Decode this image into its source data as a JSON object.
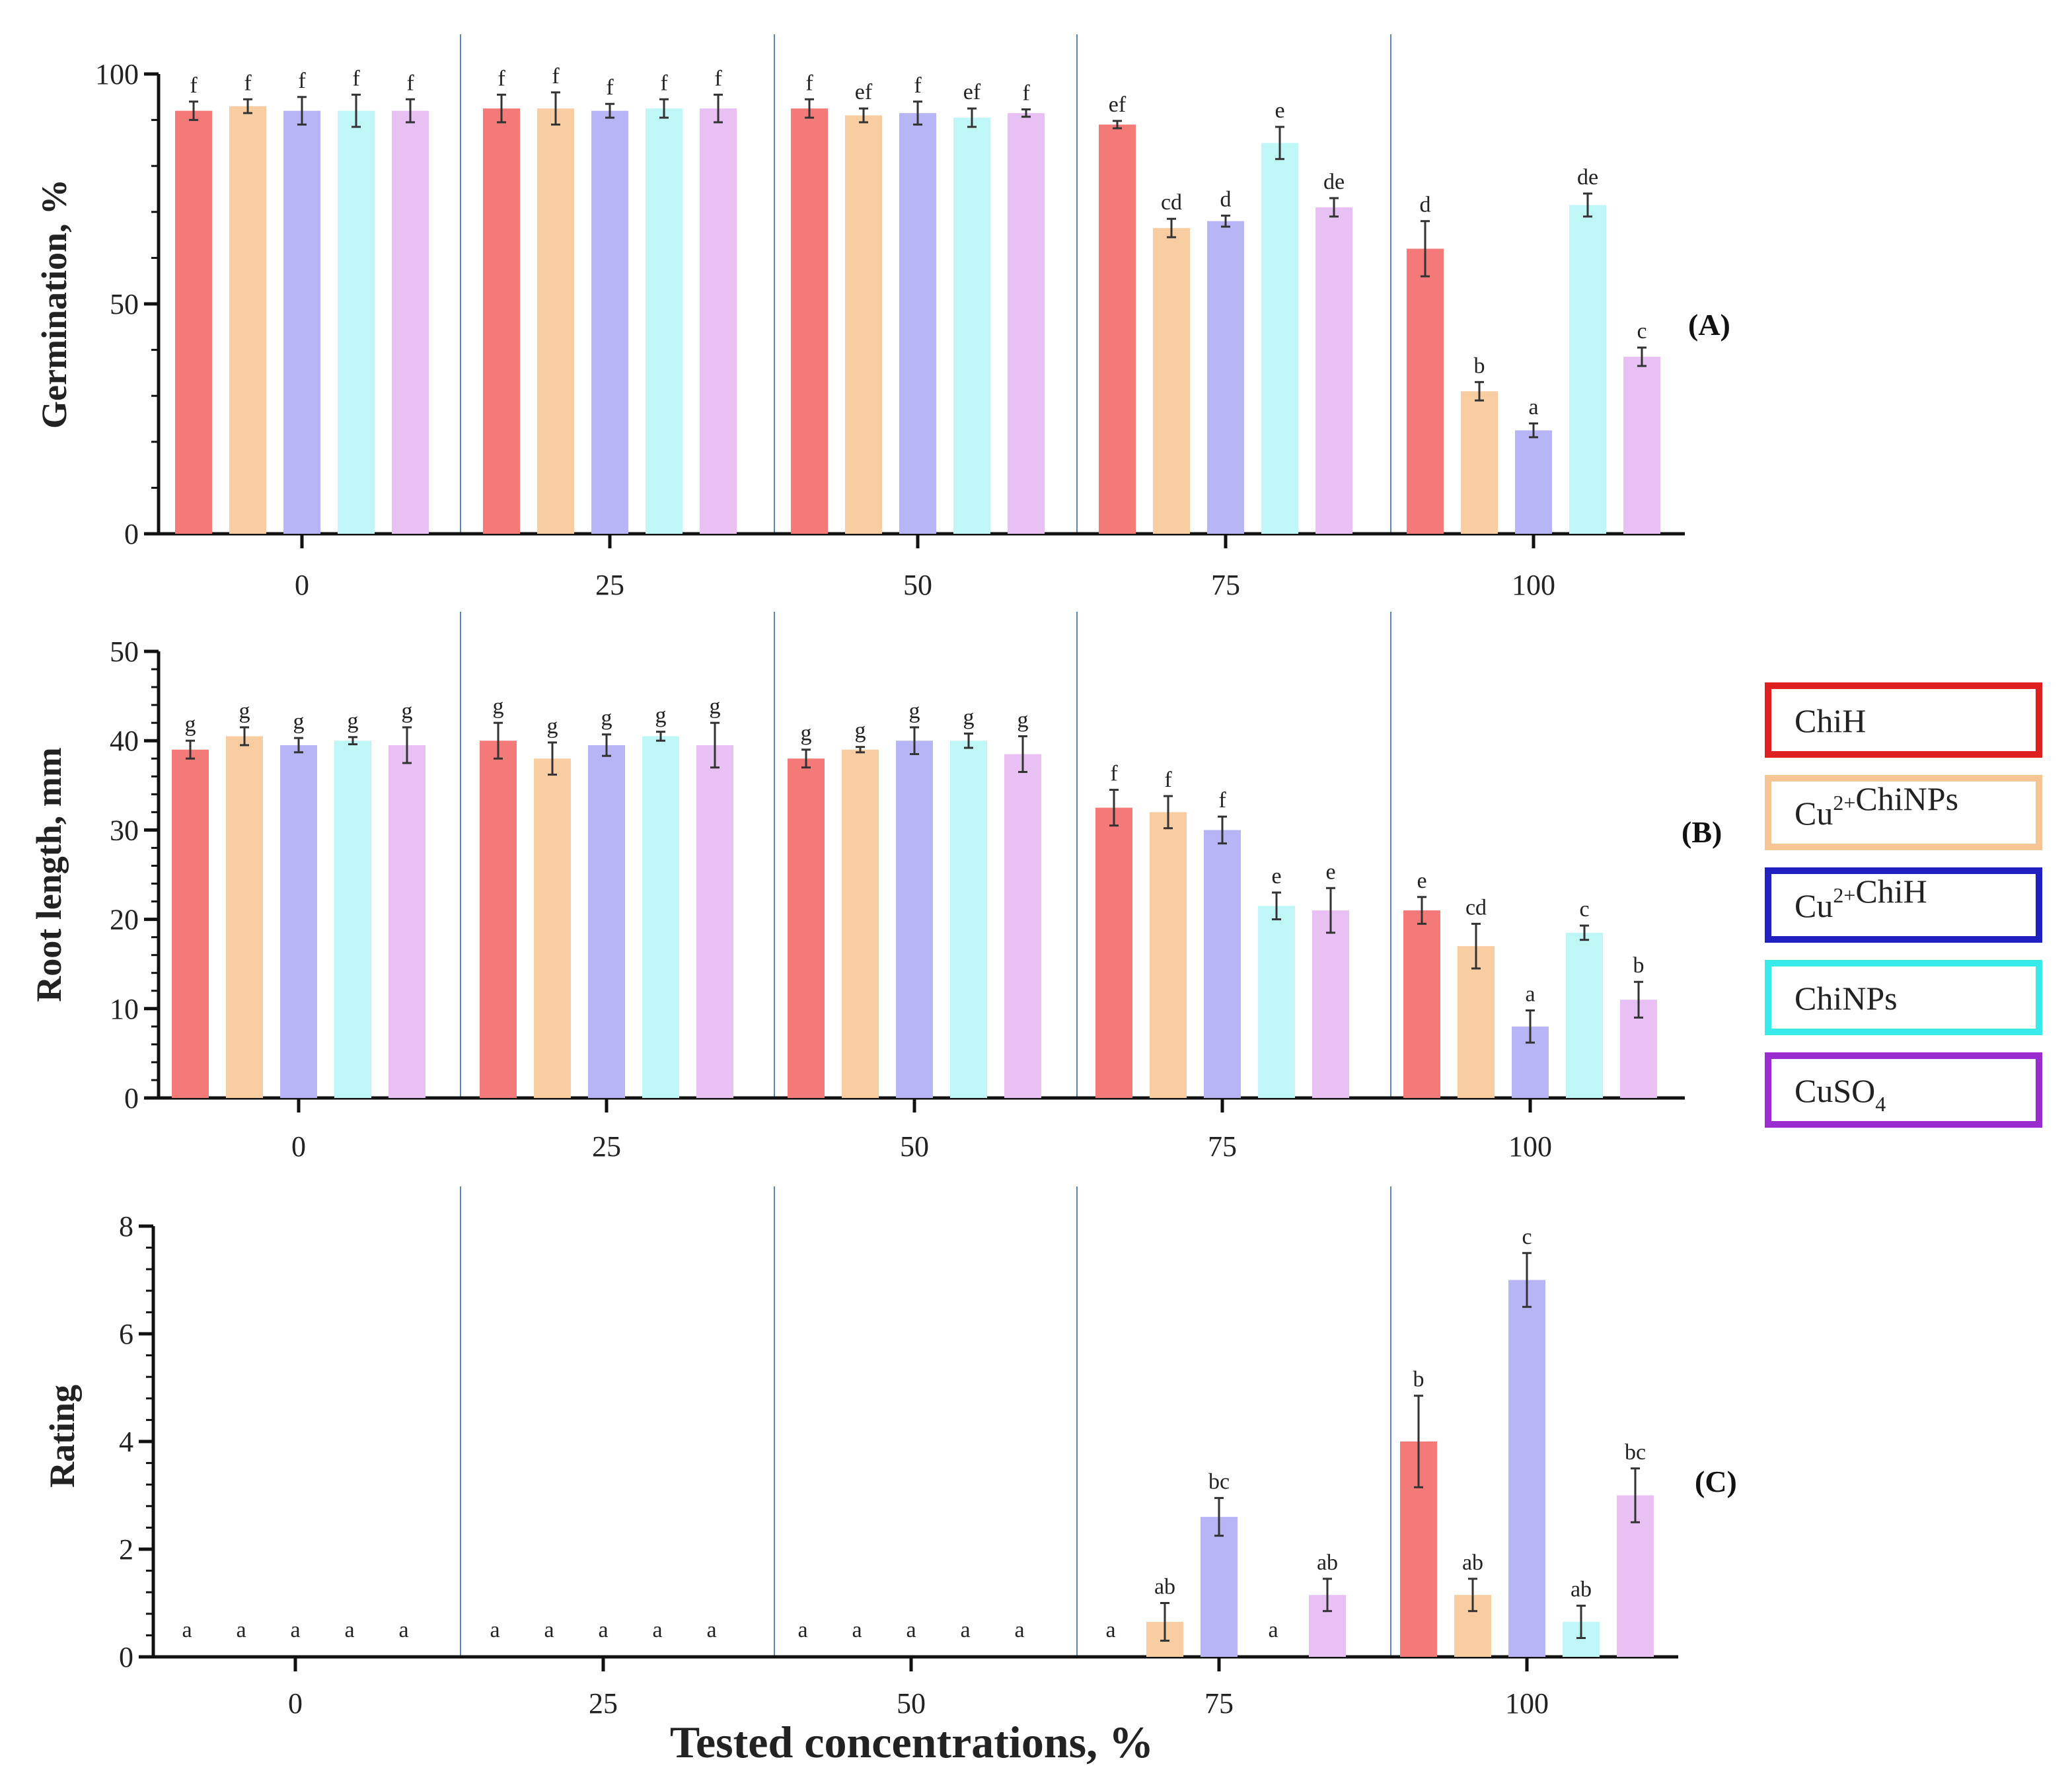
{
  "legend": [
    {
      "key": "chih",
      "parts": [
        {
          "t": "ChiH"
        }
      ],
      "color": "#f47a7a",
      "border": "#e02020"
    },
    {
      "key": "cuchinps",
      "parts": [
        {
          "t": "Cu"
        },
        {
          "t": "2+",
          "sup": true
        },
        {
          "t": "ChiNPs"
        }
      ],
      "color": "#f9cda2",
      "border": "#f6c593"
    },
    {
      "key": "cuchih",
      "parts": [
        {
          "t": "Cu"
        },
        {
          "t": "2+",
          "sup": true
        },
        {
          "t": "ChiH"
        }
      ],
      "color": "#b7b5f5",
      "border": "#1f1fc2"
    },
    {
      "key": "chinps",
      "parts": [
        {
          "t": "ChiNPs"
        }
      ],
      "color": "#bff7f7",
      "border": "#38eaea"
    },
    {
      "key": "cuso4",
      "parts": [
        {
          "t": "CuSO"
        },
        {
          "t": "4",
          "sub": true
        }
      ],
      "color": "#e8c0f3",
      "border": "#9a2ccf"
    }
  ],
  "xlabel": "Tested concentrations, %",
  "chart_data": [
    {
      "type": "bar",
      "panel_label": "(A)",
      "ylabel": "Germination, %",
      "ylim": [
        0,
        100
      ],
      "yticks": [
        "0",
        "50",
        "100"
      ],
      "categories": [
        "0",
        "25",
        "50",
        "75",
        "100"
      ],
      "series": [
        {
          "name": "ChiH",
          "values": [
            92,
            92.5,
            92.5,
            89,
            62
          ],
          "errors": [
            2,
            3,
            2,
            0.8,
            6
          ],
          "letters": [
            "f",
            "f",
            "f",
            "ef",
            "d"
          ]
        },
        {
          "name": "Cu2+ChiNPs",
          "values": [
            93,
            92.5,
            91,
            66.5,
            31
          ],
          "errors": [
            1.5,
            3.5,
            1.5,
            2,
            2
          ],
          "letters": [
            "f",
            "f",
            "ef",
            "cd",
            "b"
          ]
        },
        {
          "name": "Cu2+ChiH",
          "values": [
            92,
            92,
            91.5,
            68,
            22.5
          ],
          "errors": [
            3,
            1.5,
            2.5,
            1.2,
            1.5
          ],
          "letters": [
            "f",
            "f",
            "f",
            "d",
            "a"
          ]
        },
        {
          "name": "ChiNPs",
          "values": [
            92,
            92.5,
            90.5,
            85,
            71.5
          ],
          "errors": [
            3.5,
            2,
            2,
            3.5,
            2.5
          ],
          "letters": [
            "f",
            "f",
            "ef",
            "e",
            "de"
          ]
        },
        {
          "name": "CuSO4",
          "values": [
            92,
            92.5,
            91.5,
            71,
            38.5
          ],
          "errors": [
            2.5,
            3,
            0.8,
            2,
            2
          ],
          "letters": [
            "f",
            "f",
            "f",
            "de",
            "c"
          ]
        }
      ]
    },
    {
      "type": "bar",
      "panel_label": "(B)",
      "ylabel": "Root length, mm",
      "ylim": [
        0,
        50
      ],
      "yticks": [
        "0",
        "10",
        "20",
        "30",
        "40",
        "50"
      ],
      "categories": [
        "0",
        "25",
        "50",
        "75",
        "100"
      ],
      "series": [
        {
          "name": "ChiH",
          "values": [
            39,
            40,
            38,
            32.5,
            21
          ],
          "errors": [
            1,
            2,
            1,
            2,
            1.5
          ],
          "letters": [
            "g",
            "g",
            "g",
            "f",
            "e"
          ]
        },
        {
          "name": "Cu2+ChiNPs",
          "values": [
            40.5,
            38,
            39,
            32,
            17
          ],
          "errors": [
            1,
            1.8,
            0.3,
            1.8,
            2.5
          ],
          "letters": [
            "g",
            "g",
            "g",
            "f",
            "cd"
          ]
        },
        {
          "name": "Cu2+ChiH",
          "values": [
            39.5,
            39.5,
            40,
            30,
            8
          ],
          "errors": [
            0.8,
            1.2,
            1.5,
            1.5,
            1.8
          ],
          "letters": [
            "g",
            "g",
            "g",
            "f",
            "a"
          ]
        },
        {
          "name": "ChiNPs",
          "values": [
            40,
            40.5,
            40,
            21.5,
            18.5
          ],
          "errors": [
            0.4,
            0.5,
            0.8,
            1.5,
            0.8
          ],
          "letters": [
            "g",
            "g",
            "g",
            "e",
            "c"
          ]
        },
        {
          "name": "CuSO4",
          "values": [
            39.5,
            39.5,
            38.5,
            21,
            11
          ],
          "errors": [
            2,
            2.5,
            2,
            2.5,
            2
          ],
          "letters": [
            "g",
            "g",
            "g",
            "e",
            "b"
          ]
        }
      ]
    },
    {
      "type": "bar",
      "panel_label": "(C)",
      "ylabel": "Rating",
      "ylim": [
        0,
        8
      ],
      "yticks": [
        "0",
        "2",
        "4",
        "6",
        "8"
      ],
      "categories": [
        "0",
        "25",
        "50",
        "75",
        "100"
      ],
      "series": [
        {
          "name": "ChiH",
          "values": [
            0,
            0,
            0,
            0,
            4
          ],
          "errors": [
            0,
            0,
            0,
            0,
            0.85
          ],
          "letters": [
            "a",
            "a",
            "a",
            "a",
            "b"
          ]
        },
        {
          "name": "Cu2+ChiNPs",
          "values": [
            0,
            0,
            0,
            0.65,
            1.15
          ],
          "errors": [
            0,
            0,
            0,
            0.35,
            0.3
          ],
          "letters": [
            "a",
            "a",
            "a",
            "ab",
            "ab"
          ]
        },
        {
          "name": "Cu2+ChiH",
          "values": [
            0,
            0,
            0,
            2.6,
            7
          ],
          "errors": [
            0,
            0,
            0,
            0.35,
            0.5
          ],
          "letters": [
            "a",
            "a",
            "a",
            "bc",
            "c"
          ]
        },
        {
          "name": "ChiNPs",
          "values": [
            0,
            0,
            0,
            0,
            0.65
          ],
          "errors": [
            0,
            0,
            0,
            0,
            0.3
          ],
          "letters": [
            "a",
            "a",
            "a",
            "a",
            "ab"
          ]
        },
        {
          "name": "CuSO4",
          "values": [
            0,
            0,
            0,
            1.15,
            3
          ],
          "errors": [
            0,
            0,
            0,
            0.3,
            0.5
          ],
          "letters": [
            "a",
            "a",
            "a",
            "ab",
            "bc"
          ]
        }
      ]
    }
  ]
}
